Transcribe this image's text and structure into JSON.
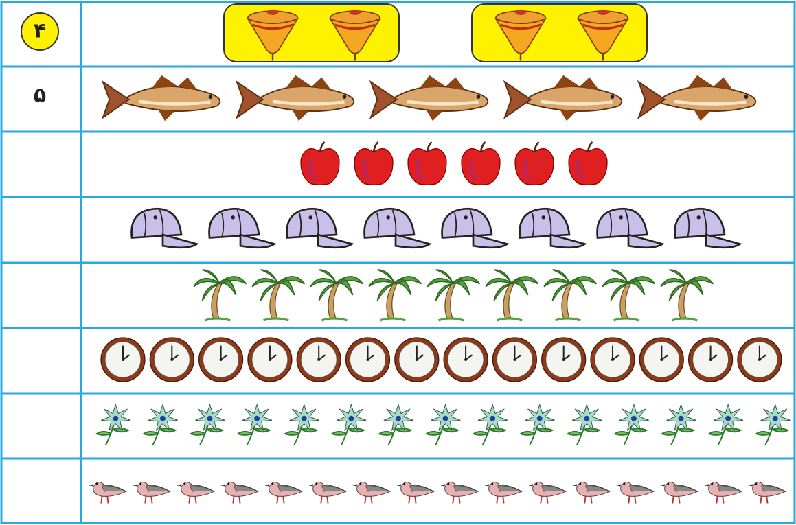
{
  "rows": [
    {
      "number": "۴"
    },
    {
      "number": "۵"
    }
  ]
}
